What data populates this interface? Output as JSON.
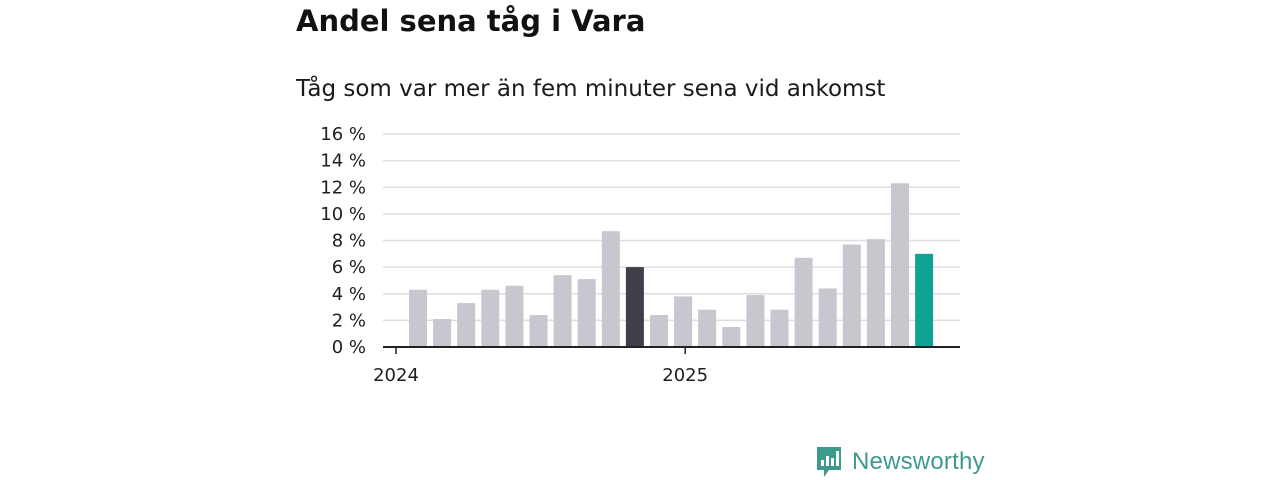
{
  "title": "Andel sena tåg i Vara",
  "subtitle": "Tåg som var mer än fem minuter sena vid ankomst",
  "brand": {
    "name": "Newsworthy"
  },
  "colors": {
    "bar_default": "#c8c7d0",
    "bar_highlight_prev_year": "#3f3e4a",
    "bar_latest": "#0fa394",
    "grid": "#dedde2",
    "axis": "#222222"
  },
  "chart_data": {
    "type": "bar",
    "title": "Andel sena tåg i Vara",
    "subtitle": "Tåg som var mer än fem minuter sena vid ankomst",
    "ylim": [
      0,
      16
    ],
    "y_ticks": [
      0,
      2,
      4,
      6,
      8,
      10,
      12,
      14,
      16
    ],
    "y_tick_labels": [
      "0 %",
      "2 %",
      "4 %",
      "6 %",
      "8 %",
      "10 %",
      "12 %",
      "14 %",
      "16 %"
    ],
    "x_tick_labels": [
      {
        "label": "2024",
        "index": 0
      },
      {
        "label": "2025",
        "index": 12
      }
    ],
    "grid": true,
    "values": [
      4.3,
      2.1,
      3.3,
      4.3,
      4.6,
      2.4,
      5.4,
      5.1,
      8.7,
      6.0,
      2.4,
      3.8,
      2.8,
      1.5,
      3.9,
      2.8,
      6.7,
      4.4,
      7.7,
      8.1,
      12.3,
      7.0
    ],
    "highlight": {
      "index": 9,
      "role": "prev_year"
    },
    "latest_index": 21
  }
}
